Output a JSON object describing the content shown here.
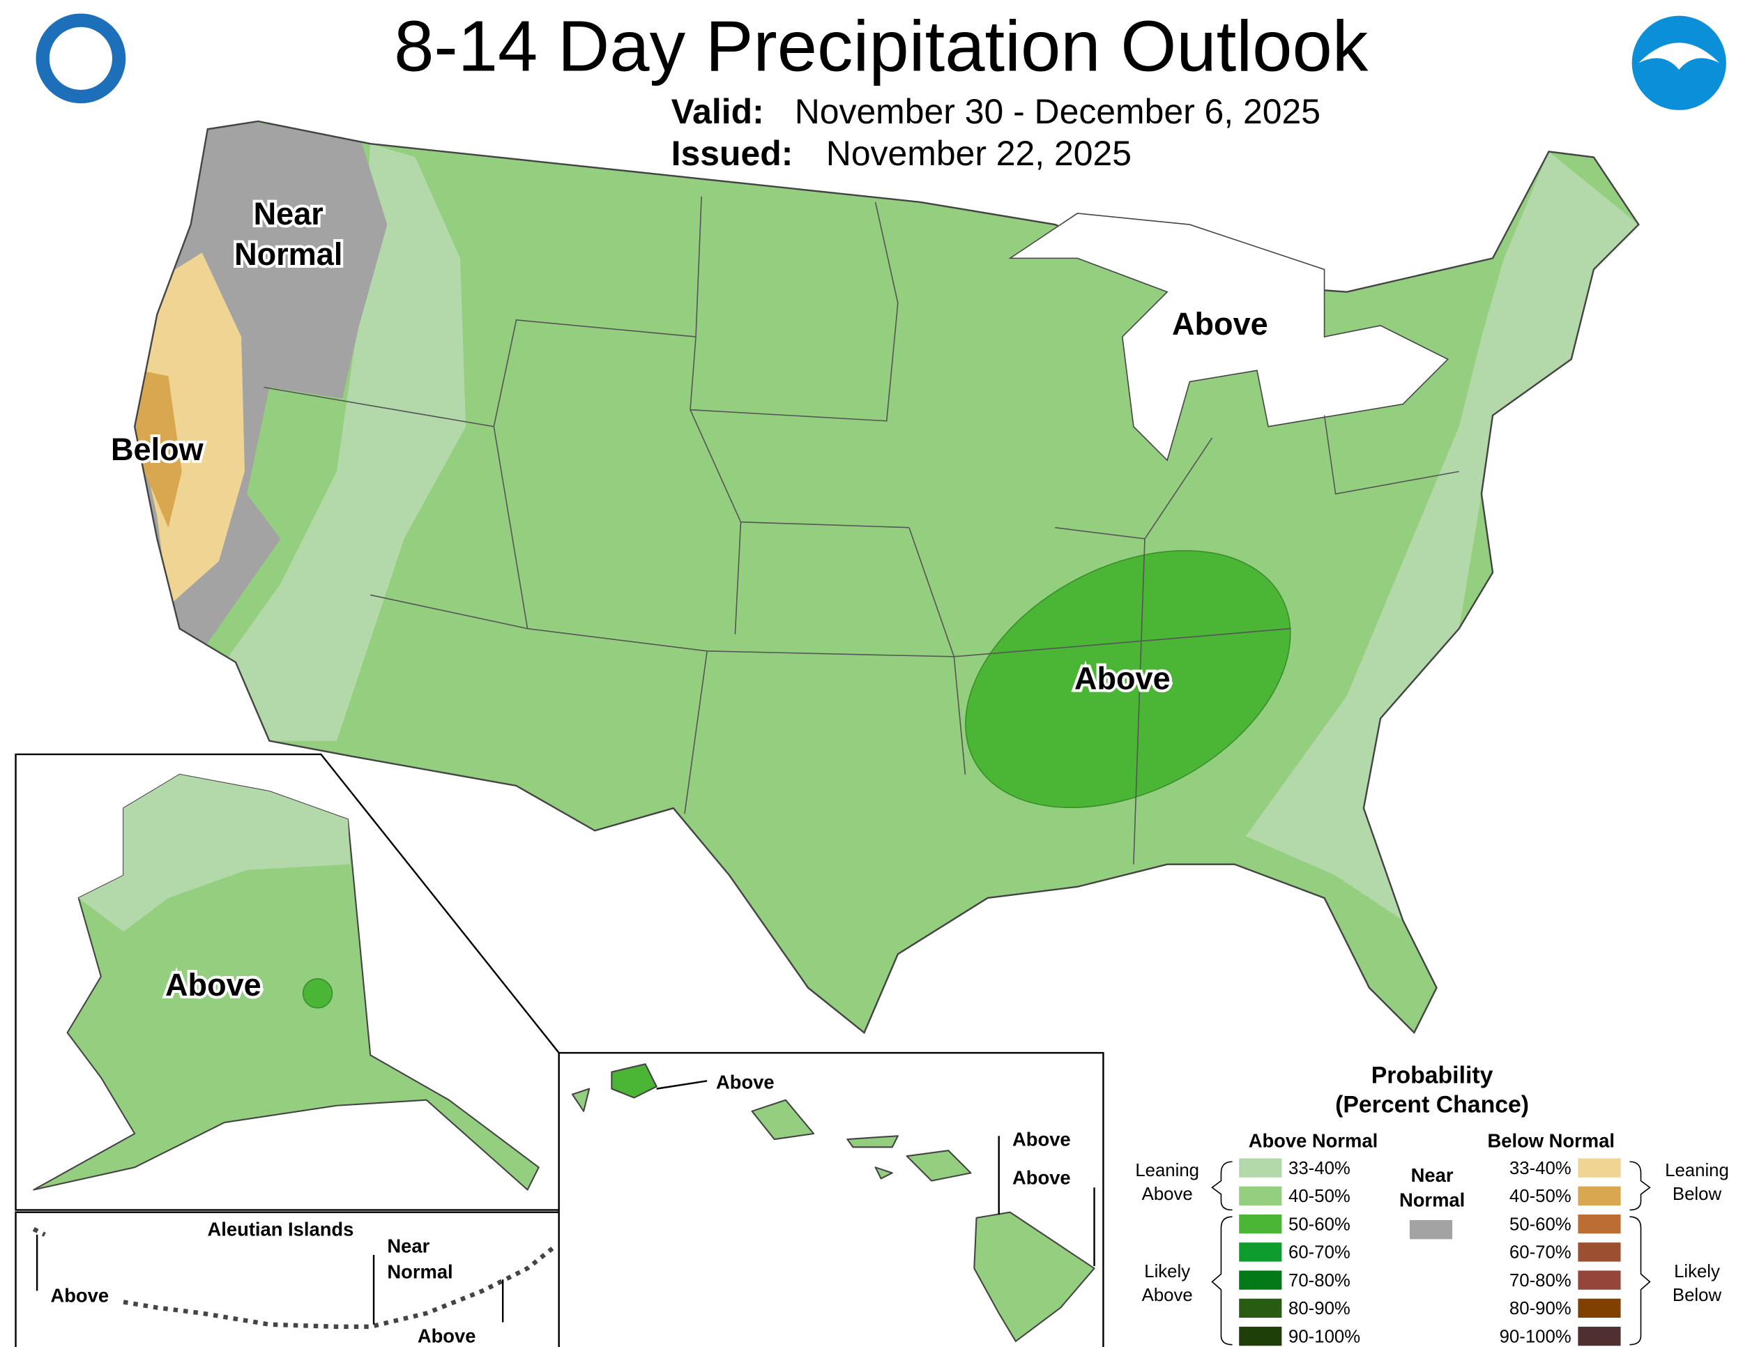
{
  "header": {
    "title": "8-14 Day Precipitation Outlook",
    "valid_label": "Valid:",
    "valid": "November 30 - December 6, 2025",
    "issued_label": "Issued:",
    "issued": "November 22, 2025"
  },
  "map_labels": {
    "conus": [
      {
        "lines": [
          "Near",
          "Normal"
        ]
      },
      {
        "lines": [
          "Below"
        ]
      },
      {
        "lines": [
          "Above"
        ]
      },
      {
        "lines": [
          "Above"
        ]
      }
    ],
    "alaska": {
      "lines": [
        "Above"
      ]
    },
    "aleutian": {
      "title": "Aleutian Islands",
      "labels": [
        {
          "lines": [
            "Above"
          ]
        },
        {
          "lines": [
            "Near",
            "Normal"
          ]
        },
        {
          "lines": [
            "Above"
          ]
        }
      ]
    },
    "hawaii": [
      {
        "lines": [
          "Above"
        ]
      },
      {
        "lines": [
          "Above"
        ]
      },
      {
        "lines": [
          "Above"
        ]
      }
    ]
  },
  "legend": {
    "title": [
      "Probability",
      "(Percent Chance)"
    ],
    "above": {
      "header": "Above Normal",
      "rows": [
        {
          "range": "33-40%",
          "color": "#b3d9ab"
        },
        {
          "range": "40-50%",
          "color": "#94cf7f"
        },
        {
          "range": "50-60%",
          "color": "#4bb535"
        },
        {
          "range": "60-70%",
          "color": "#0e9c2c"
        },
        {
          "range": "70-80%",
          "color": "#037a17"
        },
        {
          "range": "80-90%",
          "color": "#285c12"
        },
        {
          "range": "90-100%",
          "color": "#1e3f08"
        }
      ],
      "groups": [
        {
          "lines": [
            "Leaning",
            "Above"
          ]
        },
        {
          "lines": [
            "Likely",
            "Above"
          ]
        }
      ]
    },
    "near": {
      "header": [
        "Near",
        "Normal"
      ],
      "color": "#a3a3a3"
    },
    "below": {
      "header": "Below Normal",
      "rows": [
        {
          "range": "33-40%",
          "color": "#f0d493"
        },
        {
          "range": "40-50%",
          "color": "#d8a750"
        },
        {
          "range": "50-60%",
          "color": "#bb6d33"
        },
        {
          "range": "60-70%",
          "color": "#9b5031"
        },
        {
          "range": "70-80%",
          "color": "#934639"
        },
        {
          "range": "80-90%",
          "color": "#804000"
        },
        {
          "range": "90-100%",
          "color": "#4f2f2f"
        }
      ],
      "groups": [
        {
          "lines": [
            "Leaning",
            "Below"
          ]
        },
        {
          "lines": [
            "Likely",
            "Below"
          ]
        }
      ]
    }
  }
}
